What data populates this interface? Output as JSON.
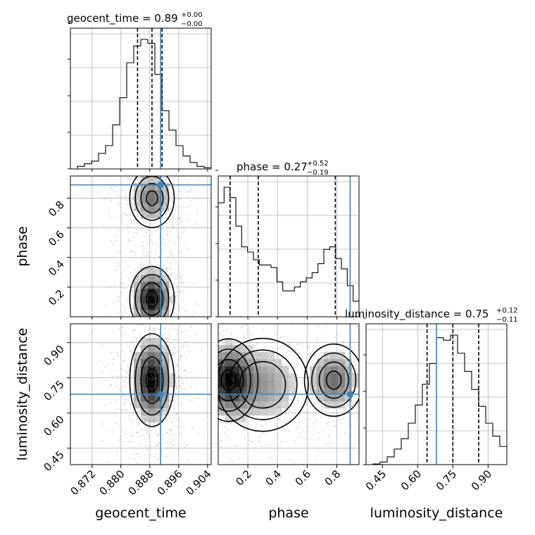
{
  "chart_data": {
    "type": "corner",
    "parameters": [
      {
        "name": "geocent_time",
        "label": "geocent_time",
        "range": [
          0.866,
          0.905
        ],
        "ticks": [
          0.872,
          0.88,
          0.888,
          0.896,
          0.904
        ],
        "tick_labels": [
          "0.872",
          "0.880",
          "0.888",
          "0.896",
          "0.904"
        ],
        "truth": 0.891,
        "quantiles": [
          0.8846,
          0.8886,
          0.8914
        ],
        "title": "geocent_time = 0.89",
        "title_sup": "+0.00",
        "title_sub": "−0.00"
      },
      {
        "name": "phase",
        "label": "phase",
        "range": [
          0.0,
          0.95
        ],
        "ticks": [
          0.2,
          0.4,
          0.6,
          0.8
        ],
        "tick_labels": [
          "0.2",
          "0.4",
          "0.6",
          "0.8"
        ],
        "truth": 0.89,
        "quantiles": [
          0.08,
          0.27,
          0.79
        ],
        "title": "phase = 0.27",
        "title_sup": "+0.52",
        "title_sub": "−0.19"
      },
      {
        "name": "luminosity_distance",
        "label": "luminosity_distance",
        "range": [
          0.38,
          0.98
        ],
        "ticks": [
          0.45,
          0.6,
          0.75,
          0.9
        ],
        "tick_labels": [
          "0.45",
          "0.60",
          "0.75",
          "0.90"
        ],
        "truth": 0.68,
        "quantiles": [
          0.64,
          0.75,
          0.86
        ],
        "title": "luminosity_distance = 0.75",
        "title_sup": "+0.12",
        "title_sub": "−0.11"
      }
    ],
    "histograms": {
      "geocent_time": [
        0.0,
        0.02,
        0.04,
        0.06,
        0.12,
        0.18,
        0.34,
        0.55,
        0.82,
        0.95,
        1.0,
        0.97,
        0.73,
        0.45,
        0.3,
        0.18,
        0.1,
        0.05,
        0.02,
        0.01
      ],
      "phase": [
        0.88,
        1.0,
        0.92,
        0.7,
        0.54,
        0.5,
        0.44,
        0.4,
        0.4,
        0.38,
        0.27,
        0.2,
        0.2,
        0.23,
        0.27,
        0.3,
        0.34,
        0.41,
        0.52,
        0.54,
        0.45,
        0.37,
        0.24,
        0.12
      ],
      "luminosity_distance": [
        0.0,
        0.005,
        0.02,
        0.06,
        0.12,
        0.2,
        0.32,
        0.46,
        0.62,
        0.78,
        0.98,
        0.96,
        1.0,
        0.86,
        0.72,
        0.58,
        0.45,
        0.32,
        0.22,
        0.14
      ]
    },
    "pairs": [
      {
        "x": "geocent_time",
        "y": "phase"
      },
      {
        "x": "geocent_time",
        "y": "luminosity_distance"
      },
      {
        "x": "phase",
        "y": "luminosity_distance"
      }
    ],
    "grid": true
  }
}
